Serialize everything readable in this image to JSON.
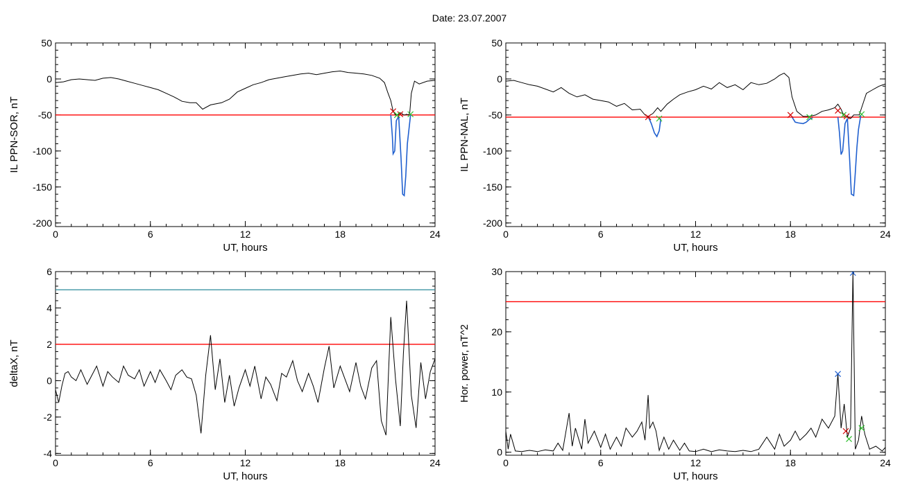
{
  "page_title": "Date:  23.07.2007",
  "chart_data": [
    {
      "id": "sor",
      "type": "line",
      "xlabel": "UT, hours",
      "ylabel": "IL PPN-SOR, nT",
      "xlim": [
        0,
        24
      ],
      "ylim": [
        -205,
        50
      ],
      "xticks": [
        0,
        6,
        12,
        18,
        24
      ],
      "yticks": [
        50,
        0,
        -50,
        -100,
        -150,
        -200
      ],
      "threshold": {
        "value": -50,
        "color": "#ff0000"
      },
      "series": [
        {
          "color": "#000000",
          "x": [
            0,
            0.5,
            1,
            1.5,
            2,
            2.5,
            3,
            3.5,
            4,
            4.5,
            5,
            5.5,
            6,
            6.5,
            7,
            7.5,
            8,
            8.5,
            8.9,
            9.3,
            9.8,
            10.5,
            11,
            11.5,
            12,
            12.5,
            13,
            13.5,
            14,
            14.5,
            15,
            15.5,
            16,
            16.5,
            17,
            17.5,
            18,
            18.5,
            19,
            19.5,
            20,
            20.5,
            20.8,
            21.0,
            21.2,
            21.35,
            21.5,
            21.6,
            21.7,
            21.8,
            21.9,
            22.0,
            22.1,
            22.2,
            22.3,
            22.4,
            22.5,
            22.7,
            23,
            23.5,
            24
          ],
          "y": [
            -5,
            -4,
            -1,
            0,
            -1,
            -2,
            1,
            2,
            0,
            -3,
            -6,
            -9,
            -12,
            -15,
            -20,
            -25,
            -31,
            -33,
            -33,
            -42,
            -36,
            -33,
            -28,
            -18,
            -13,
            -8,
            -5,
            -1,
            1,
            3,
            5,
            7,
            8,
            6,
            8,
            10,
            11,
            9,
            8,
            7,
            5,
            1,
            -5,
            -18,
            -30,
            -45,
            -50,
            -50,
            -49,
            -47,
            -48,
            -50,
            -50,
            -49,
            -50,
            -48,
            -20,
            -3,
            -7,
            -3,
            -2
          ]
        },
        {
          "color": "#1f5fcf",
          "x": [
            21.2,
            21.3,
            21.35,
            21.45,
            21.55,
            21.7,
            21.85,
            21.95,
            22.05,
            22.15,
            22.25,
            22.35,
            22.45
          ],
          "y": [
            -50,
            -80,
            -104,
            -100,
            -58,
            -52,
            -110,
            -160,
            -162,
            -135,
            -90,
            -70,
            -50
          ]
        }
      ],
      "markers": [
        {
          "x": 21.35,
          "y": -45,
          "color": "#d00000"
        },
        {
          "x": 21.8,
          "y": -49,
          "color": "#d00000"
        },
        {
          "x": 21.6,
          "y": -50,
          "color": "#2bbf2b"
        },
        {
          "x": 22.45,
          "y": -49,
          "color": "#2bbf2b"
        }
      ]
    },
    {
      "id": "nal",
      "type": "line",
      "xlabel": "UT, hours",
      "ylabel": "IL PPN-NAL, nT",
      "xlim": [
        0,
        24
      ],
      "ylim": [
        -205,
        50
      ],
      "xticks": [
        0,
        6,
        12,
        18,
        24
      ],
      "yticks": [
        50,
        0,
        -50,
        -100,
        -150,
        -200
      ],
      "threshold": {
        "value": -53,
        "color": "#ff0000"
      },
      "series": [
        {
          "color": "#000000",
          "x": [
            0,
            0.5,
            1,
            1.5,
            2,
            2.5,
            3,
            3.5,
            4,
            4.5,
            5,
            5.5,
            6,
            6.5,
            7,
            7.5,
            8,
            8.5,
            8.8,
            9.0,
            9.3,
            9.6,
            9.8,
            10.2,
            10.6,
            11,
            11.5,
            12,
            12.5,
            13,
            13.5,
            14,
            14.5,
            15,
            15.5,
            16,
            16.5,
            17,
            17.3,
            17.6,
            17.9,
            18.1,
            18.4,
            18.8,
            19.2,
            19.6,
            20,
            20.4,
            20.8,
            21.0,
            21.2,
            21.4,
            21.6,
            21.8,
            22.0,
            22.2,
            22.35,
            22.5,
            22.8,
            23.2,
            23.6,
            24
          ],
          "y": [
            -3,
            -2,
            -5,
            -8,
            -10,
            -14,
            -18,
            -12,
            -20,
            -25,
            -22,
            -28,
            -30,
            -32,
            -38,
            -34,
            -43,
            -42,
            -50,
            -52,
            -48,
            -40,
            -45,
            -35,
            -28,
            -22,
            -18,
            -15,
            -10,
            -14,
            -5,
            -12,
            -8,
            -15,
            -5,
            -8,
            -6,
            0,
            5,
            8,
            2,
            -25,
            -45,
            -52,
            -52,
            -50,
            -45,
            -43,
            -40,
            -35,
            -42,
            -52,
            -52,
            -55,
            -50,
            -50,
            -50,
            -40,
            -20,
            -15,
            -10,
            -7
          ]
        },
        {
          "color": "#1f5fcf",
          "x": [
            9.0,
            9.2,
            9.4,
            9.55,
            9.7,
            9.8
          ],
          "y": [
            -52,
            -62,
            -75,
            -80,
            -72,
            -55
          ]
        },
        {
          "color": "#1f5fcf",
          "x": [
            18.1,
            18.3,
            18.5,
            18.8,
            19.0,
            19.2,
            19.4
          ],
          "y": [
            -53,
            -60,
            -61,
            -62,
            -60,
            -56,
            -54
          ]
        },
        {
          "color": "#1f5fcf",
          "x": [
            21.0,
            21.1,
            21.2,
            21.3,
            21.45,
            21.6,
            21.75,
            21.85,
            22.0,
            22.1,
            22.2,
            22.3,
            22.45
          ],
          "y": [
            -53,
            -75,
            -105,
            -100,
            -62,
            -55,
            -115,
            -160,
            -162,
            -130,
            -95,
            -70,
            -50
          ]
        }
      ],
      "markers": [
        {
          "x": 9.0,
          "y": -53,
          "color": "#d00000"
        },
        {
          "x": 18.0,
          "y": -50,
          "color": "#d00000"
        },
        {
          "x": 21.0,
          "y": -44,
          "color": "#d00000"
        },
        {
          "x": 21.55,
          "y": -52,
          "color": "#d00000"
        },
        {
          "x": 9.7,
          "y": -55,
          "color": "#2bbf2b"
        },
        {
          "x": 19.2,
          "y": -53,
          "color": "#2bbf2b"
        },
        {
          "x": 21.35,
          "y": -50,
          "color": "#2bbf2b"
        },
        {
          "x": 22.5,
          "y": -49,
          "color": "#2bbf2b"
        }
      ]
    },
    {
      "id": "deltax",
      "type": "line",
      "xlabel": "UT, hours",
      "ylabel": "deltaX, nT",
      "xlim": [
        0,
        24
      ],
      "ylim": [
        -4.1,
        6
      ],
      "xticks": [
        0,
        6,
        12,
        18,
        24
      ],
      "yticks": [
        6,
        4,
        2,
        0,
        -2,
        -4
      ],
      "thresholds": [
        {
          "value": 5,
          "color": "#2a8a9a"
        },
        {
          "value": 2,
          "color": "#ff0000"
        }
      ],
      "series": [
        {
          "color": "#000000",
          "x": [
            0,
            0.2,
            0.4,
            0.6,
            0.8,
            1.0,
            1.3,
            1.6,
            2.0,
            2.3,
            2.6,
            3.0,
            3.3,
            3.6,
            4.0,
            4.3,
            4.6,
            5.0,
            5.3,
            5.6,
            6.0,
            6.3,
            6.6,
            7.0,
            7.3,
            7.6,
            8.0,
            8.3,
            8.6,
            8.9,
            9.2,
            9.5,
            9.8,
            10.1,
            10.4,
            10.7,
            11.0,
            11.3,
            11.6,
            12.0,
            12.3,
            12.6,
            13.0,
            13.3,
            13.6,
            14.0,
            14.3,
            14.6,
            15.0,
            15.3,
            15.6,
            16.0,
            16.3,
            16.6,
            17.0,
            17.3,
            17.6,
            18.0,
            18.3,
            18.6,
            19.0,
            19.3,
            19.6,
            20.0,
            20.3,
            20.6,
            20.9,
            21.2,
            21.5,
            21.8,
            22.0,
            22.2,
            22.5,
            22.8,
            23.1,
            23.4,
            23.7,
            24.0
          ],
          "y": [
            -0.5,
            -1.2,
            -0.3,
            0.4,
            0.5,
            0.2,
            0.0,
            0.6,
            -0.2,
            0.3,
            0.8,
            -0.3,
            0.5,
            0.2,
            -0.1,
            0.8,
            0.3,
            0.1,
            0.6,
            -0.3,
            0.5,
            -0.1,
            0.6,
            0.0,
            -0.5,
            0.3,
            0.6,
            0.2,
            0.1,
            -0.8,
            -2.9,
            0.3,
            2.5,
            -0.5,
            1.2,
            -1.2,
            0.3,
            -1.4,
            -0.4,
            0.6,
            -0.3,
            0.8,
            -1.0,
            0.2,
            -0.2,
            -1.1,
            0.4,
            0.2,
            1.1,
            0.0,
            -0.6,
            0.4,
            -0.3,
            -1.2,
            0.7,
            1.9,
            -0.4,
            0.8,
            0.1,
            -0.6,
            1.0,
            -0.3,
            -1.0,
            0.7,
            1.1,
            -2.2,
            -3.0,
            3.5,
            0.1,
            -2.5,
            1.5,
            4.4,
            -0.8,
            -2.6,
            1.0,
            -1.0,
            0.5,
            1.2
          ]
        }
      ]
    },
    {
      "id": "power",
      "type": "line",
      "xlabel": "UT, hours",
      "ylabel": "Hor. power, nT^2",
      "xlim": [
        0,
        24
      ],
      "ylim": [
        -0.5,
        30
      ],
      "xticks": [
        0,
        6,
        12,
        18,
        24
      ],
      "yticks": [
        30,
        20,
        10,
        0
      ],
      "threshold": {
        "value": 25,
        "color": "#ff0000"
      },
      "series": [
        {
          "color": "#000000",
          "x": [
            0,
            0.15,
            0.3,
            0.6,
            1.0,
            1.5,
            2.0,
            2.5,
            3.0,
            3.3,
            3.6,
            4.0,
            4.2,
            4.4,
            4.8,
            5.0,
            5.2,
            5.6,
            6.0,
            6.3,
            6.6,
            7.0,
            7.3,
            7.6,
            8.0,
            8.3,
            8.6,
            8.8,
            9.0,
            9.1,
            9.3,
            9.5,
            9.7,
            10.0,
            10.3,
            10.6,
            11.0,
            11.3,
            11.6,
            12.0,
            12.5,
            13.0,
            13.5,
            14.0,
            14.5,
            15.0,
            15.5,
            16.0,
            16.5,
            17.0,
            17.3,
            17.6,
            18.0,
            18.3,
            18.6,
            19.0,
            19.3,
            19.6,
            20.0,
            20.4,
            20.8,
            21.0,
            21.2,
            21.4,
            21.6,
            21.8,
            21.95,
            22.1,
            22.3,
            22.5,
            22.7,
            23.0,
            23.4,
            23.8,
            24.0
          ],
          "y": [
            3.5,
            0.5,
            3.0,
            0.2,
            0.1,
            0.3,
            0.1,
            0.4,
            0.2,
            1.5,
            0.3,
            6.5,
            1.0,
            4.0,
            0.5,
            5.5,
            1.5,
            3.5,
            0.8,
            3.0,
            0.5,
            2.5,
            1.0,
            4.0,
            2.5,
            3.5,
            5.0,
            2.0,
            9.5,
            4.0,
            5.0,
            3.5,
            0.3,
            2.5,
            0.5,
            2.0,
            0.3,
            1.5,
            0.2,
            0.1,
            0.5,
            0.1,
            0.4,
            0.2,
            0.1,
            0.3,
            0.1,
            0.5,
            2.5,
            0.5,
            3.0,
            1.0,
            2.0,
            3.5,
            2.0,
            3.0,
            4.0,
            2.5,
            5.5,
            4.0,
            6.0,
            13.0,
            4.0,
            8.0,
            2.5,
            4.0,
            30.0,
            0.5,
            2.0,
            6.0,
            3.0,
            0.5,
            1.0,
            0.2,
            0.8
          ]
        }
      ],
      "markers": [
        {
          "x": 21.0,
          "y": 13.0,
          "color": "#1f5fcf"
        },
        {
          "x": 21.95,
          "y": 29.8,
          "color": "#1f5fcf"
        },
        {
          "x": 21.5,
          "y": 3.5,
          "color": "#d00000"
        },
        {
          "x": 21.7,
          "y": 2.2,
          "color": "#2bbf2b"
        },
        {
          "x": 22.5,
          "y": 4.0,
          "color": "#2bbf2b"
        }
      ]
    }
  ]
}
